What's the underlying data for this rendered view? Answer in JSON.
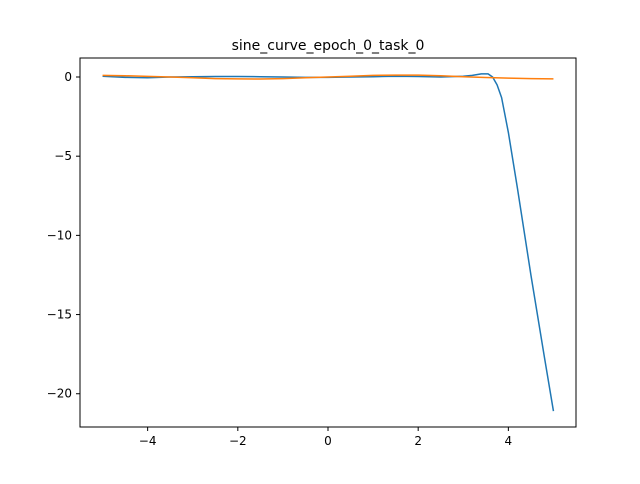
{
  "chart_data": {
    "type": "line",
    "title": "sine_curve_epoch_0_task_0",
    "xlabel": "",
    "ylabel": "",
    "xlim": [
      -5.5,
      5.5
    ],
    "ylim": [
      -22.1,
      1.2
    ],
    "xticks": [
      -4,
      -2,
      0,
      2,
      4
    ],
    "yticks": [
      0,
      -5,
      -10,
      -15,
      -20
    ],
    "xtick_labels": [
      "−4",
      "−2",
      "0",
      "2",
      "4"
    ],
    "ytick_labels": [
      "0",
      "−5",
      "−10",
      "−15",
      "−20"
    ],
    "grid": false,
    "legend": "none",
    "series": [
      {
        "color": "#1f77b4",
        "x": [
          -5.0,
          -4.5,
          -4.0,
          -3.5,
          -3.0,
          -2.5,
          -2.0,
          -1.5,
          -1.0,
          -0.5,
          0.0,
          0.5,
          1.0,
          1.5,
          2.0,
          2.5,
          3.0,
          3.2,
          3.4,
          3.55,
          3.65,
          3.75,
          3.85,
          4.0,
          4.2,
          4.5,
          4.8,
          5.0
        ],
        "y": [
          0.05,
          -0.02,
          -0.05,
          0.0,
          0.02,
          0.03,
          0.03,
          0.02,
          0.0,
          -0.02,
          -0.02,
          0.0,
          0.02,
          0.05,
          0.03,
          0.0,
          0.05,
          0.1,
          0.2,
          0.2,
          0.0,
          -0.5,
          -1.3,
          -3.5,
          -7.0,
          -12.5,
          -17.7,
          -21.1
        ]
      },
      {
        "color": "#ff7f0e",
        "x": [
          -5.0,
          -4.5,
          -4.0,
          -3.5,
          -3.0,
          -2.5,
          -2.0,
          -1.5,
          -1.0,
          -0.5,
          0.0,
          0.5,
          1.0,
          1.5,
          2.0,
          2.5,
          3.0,
          3.5,
          4.0,
          4.5,
          5.0
        ],
        "y": [
          0.1,
          0.08,
          0.04,
          0.0,
          -0.05,
          -0.1,
          -0.12,
          -0.13,
          -0.1,
          -0.05,
          0.0,
          0.05,
          0.1,
          0.12,
          0.12,
          0.08,
          0.02,
          -0.03,
          -0.07,
          -0.1,
          -0.12
        ]
      }
    ]
  }
}
